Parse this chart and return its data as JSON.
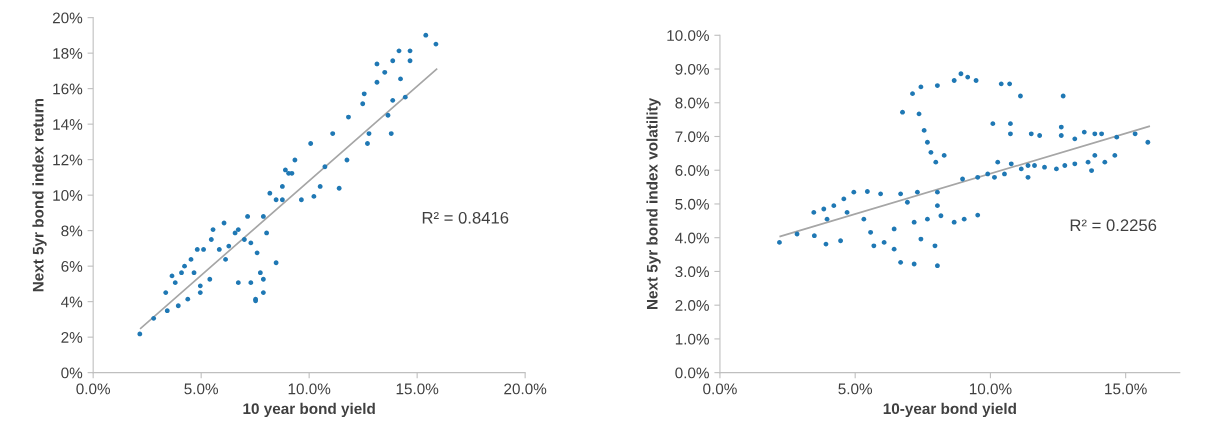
{
  "chart_data": [
    {
      "type": "scatter",
      "xlabel": "10 year bond yield",
      "ylabel": "Next 5yr bond index return",
      "annotations": [
        "R² = 0.8416"
      ],
      "xlim": [
        0,
        20
      ],
      "ylim": [
        0,
        20
      ],
      "xticks": [
        {
          "value": 0,
          "label": "0.0%"
        },
        {
          "value": 5,
          "label": "5.0%"
        },
        {
          "value": 10,
          "label": "10.0%"
        },
        {
          "value": 15,
          "label": "15.0%"
        },
        {
          "value": 20,
          "label": "20.0%"
        }
      ],
      "yticks": [
        {
          "value": 0,
          "label": "0%"
        },
        {
          "value": 2,
          "label": "2%"
        },
        {
          "value": 4,
          "label": "4%"
        },
        {
          "value": 6,
          "label": "6%"
        },
        {
          "value": 8,
          "label": "8%"
        },
        {
          "value": 10,
          "label": "10%"
        },
        {
          "value": 12,
          "label": "12%"
        },
        {
          "value": 14,
          "label": "14%"
        },
        {
          "value": 16,
          "label": "16%"
        },
        {
          "value": 18,
          "label": "18%"
        },
        {
          "value": 20,
          "label": "20%"
        }
      ],
      "series": [
        {
          "marker": "circle",
          "color": "#1f78b4",
          "x": [
            2.16,
            2.8,
            3.43,
            3.36,
            3.8,
            4.09,
            4.53,
            4.82,
            4.38,
            4.96,
            5.4,
            5.55,
            5.84,
            6.13,
            6.06,
            6.72,
            7.0,
            7.15,
            7.52,
            7.3,
            7.88,
            7.74,
            8.47,
            8.03,
            8.18,
            8.76,
            9.05,
            9.34,
            9.64,
            10.22,
            10.07,
            10.51,
            10.73,
            11.09,
            11.39,
            11.75,
            11.82,
            12.55,
            12.48,
            12.7,
            12.77,
            13.14,
            13.14,
            13.5,
            13.87,
            13.65,
            13.8,
            13.87,
            14.16,
            14.23,
            14.45,
            14.67,
            14.67,
            15.4,
            15.87,
            3.65,
            4.23,
            4.67,
            5.11,
            5.47,
            6.28,
            6.57,
            7.3,
            7.59,
            7.88,
            8.47,
            8.76,
            8.9,
            9.2,
            7.88,
            6.72,
            7.52,
            3.94,
            4.96
          ],
          "values": [
            2.18,
            3.06,
            3.49,
            4.51,
            5.07,
            5.63,
            6.38,
            6.94,
            4.14,
            4.51,
            5.26,
            8.06,
            6.94,
            6.38,
            8.43,
            8.06,
            7.5,
            8.8,
            4.14,
            5.07,
            4.51,
            5.63,
            6.19,
            7.87,
            10.11,
            9.74,
            11.23,
            11.98,
            9.74,
            9.93,
            12.91,
            10.49,
            11.6,
            13.47,
            10.39,
            11.98,
            14.4,
            15.71,
            15.15,
            12.91,
            13.47,
            17.39,
            16.36,
            16.92,
            17.57,
            14.5,
            13.47,
            15.34,
            18.13,
            16.55,
            15.52,
            18.13,
            17.57,
            19.01,
            18.51,
            5.45,
            6.0,
            5.63,
            6.94,
            7.5,
            7.13,
            7.87,
            7.31,
            6.75,
            8.8,
            9.74,
            10.49,
            11.42,
            11.23,
            5.26,
            5.07,
            4.05,
            3.77,
            4.89
          ]
        },
        {
          "type": "line",
          "color": "#a6a6a6",
          "x": [
            2.2,
            15.9
          ],
          "values": [
            2.5,
            17.1
          ]
        }
      ]
    },
    {
      "type": "scatter",
      "xlabel": "10-year bond yield",
      "ylabel": "Next 5yr bond index volatility",
      "annotations": [
        "R² = 0.2256"
      ],
      "xlim": [
        0,
        17
      ],
      "ylim": [
        0,
        10
      ],
      "xticks": [
        {
          "value": 0,
          "label": "0.0%"
        },
        {
          "value": 5,
          "label": "5.0%"
        },
        {
          "value": 10,
          "label": "10.0%"
        },
        {
          "value": 15,
          "label": "15.0%"
        }
      ],
      "yticks": [
        {
          "value": 0,
          "label": "0.0%"
        },
        {
          "value": 1,
          "label": "1.0%"
        },
        {
          "value": 2,
          "label": "2.0%"
        },
        {
          "value": 3,
          "label": "3.0%"
        },
        {
          "value": 4,
          "label": "4.0%"
        },
        {
          "value": 5,
          "label": "5.0%"
        },
        {
          "value": 6,
          "label": "6.0%"
        },
        {
          "value": 7,
          "label": "7.0%"
        },
        {
          "value": 8,
          "label": "8.0%"
        },
        {
          "value": 9,
          "label": "9.0%"
        },
        {
          "value": 10,
          "label": "10.0%"
        }
      ],
      "series": [
        {
          "marker": "circle",
          "color": "#1f78b4",
          "x": [
            2.2,
            2.85,
            3.49,
            3.92,
            4.46,
            3.47,
            3.84,
            4.21,
            4.58,
            4.95,
            5.45,
            5.94,
            6.68,
            3.96,
            4.7,
            5.32,
            5.57,
            5.69,
            6.07,
            6.44,
            6.68,
            7.18,
            8.04,
            6.44,
            7.18,
            7.67,
            8.17,
            8.66,
            9.03,
            9.53,
            6.93,
            7.3,
            8.04,
            8.04,
            7.43,
            7.95,
            6.75,
            7.12,
            7.36,
            7.55,
            7.67,
            7.8,
            7.98,
            8.29,
            7.43,
            8.04,
            8.66,
            9.16,
            9.47,
            8.91,
            8.97,
            9.53,
            9.9,
            10.15,
            10.52,
            10.27,
            10.77,
            10.4,
            10.71,
            11.11,
            12.69,
            10.09,
            10.74,
            10.74,
            11.51,
            11.82,
            12.62,
            12.62,
            13.12,
            13.47,
            13.86,
            14.11,
            14.67,
            15.35,
            15.82,
            11.14,
            11.39,
            11.63,
            12.0,
            11.39,
            12.44,
            12.75,
            13.12,
            13.61,
            13.74,
            13.86,
            14.23,
            14.6
          ],
          "values": [
            3.86,
            4.11,
            4.06,
            3.81,
            3.91,
            4.75,
            4.85,
            4.95,
            5.15,
            5.35,
            5.37,
            5.3,
            5.3,
            4.55,
            4.75,
            4.55,
            4.16,
            3.76,
            3.86,
            3.66,
            3.27,
            3.22,
            3.17,
            4.26,
            4.46,
            4.55,
            4.65,
            4.46,
            4.55,
            4.67,
            5.05,
            5.35,
            5.35,
            4.95,
            3.96,
            3.76,
            7.72,
            8.27,
            7.67,
            7.18,
            6.83,
            6.53,
            6.24,
            6.44,
            8.47,
            8.51,
            8.66,
            8.76,
            8.66,
            8.86,
            5.74,
            5.79,
            5.89,
            5.79,
            5.89,
            6.24,
            6.19,
            8.56,
            8.56,
            8.2,
            8.2,
            7.38,
            7.38,
            7.08,
            7.08,
            7.03,
            7.28,
            7.03,
            6.93,
            7.13,
            7.08,
            7.08,
            6.98,
            7.08,
            6.83,
            6.04,
            6.14,
            6.14,
            6.09,
            5.79,
            6.04,
            6.14,
            6.19,
            6.24,
            5.99,
            6.44,
            6.24,
            6.44
          ]
        },
        {
          "type": "line",
          "color": "#a6a6a6",
          "x": [
            2.23,
            15.87
          ],
          "values": [
            4.04,
            7.3
          ]
        }
      ]
    }
  ]
}
